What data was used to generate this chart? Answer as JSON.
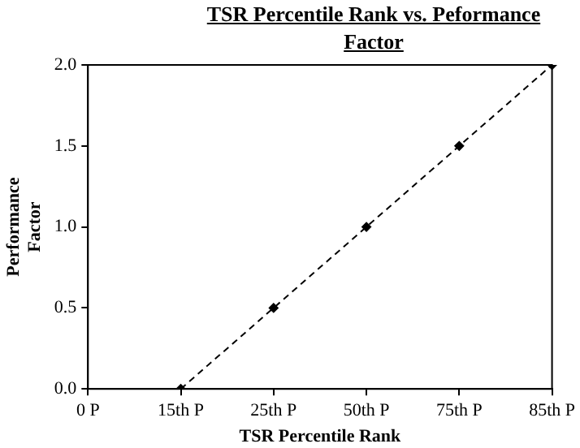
{
  "chart_data": {
    "type": "line",
    "title": "TSR Percentile Rank  vs.  Peformance Factor",
    "xlabel": "TSR Percentile Rank",
    "ylabel": "Performance Factor",
    "categories": [
      "0 P",
      "15th P",
      "25th P",
      "50th P",
      "75th P",
      "85th P"
    ],
    "series": [
      {
        "color": "#000000",
        "values": [
          null,
          0,
          0.5,
          1,
          1.5,
          2
        ]
      }
    ],
    "ylim": [
      0,
      2
    ],
    "yticks": [
      {
        "value": 0,
        "label": "0.0"
      },
      {
        "value": 0.5,
        "label": "0.5"
      },
      {
        "value": 1,
        "label": "1.0"
      },
      {
        "value": 1.5,
        "label": "1.5"
      },
      {
        "value": 2,
        "label": "2.0"
      }
    ],
    "grid": false,
    "legend": false,
    "marker": "diamond",
    "line_style": "dashed"
  }
}
